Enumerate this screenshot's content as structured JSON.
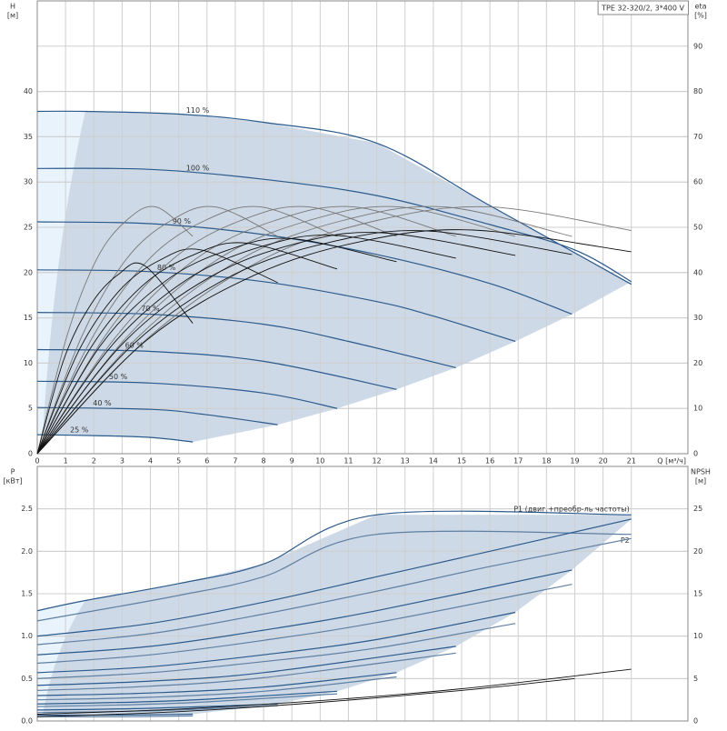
{
  "chart_data": [
    {
      "type": "line",
      "title": "TPE 32-320/2, 3*400 V",
      "y_label": "H",
      "y_unit": "[м]",
      "y2_label": "eta",
      "y2_unit": "[%]",
      "x_label": "Q [м³/ч]",
      "xlim": [
        0,
        23
      ],
      "xticks": [
        0,
        1,
        2,
        3,
        4,
        5,
        6,
        7,
        8,
        9,
        10,
        11,
        12,
        13,
        14,
        15,
        16,
        17,
        18,
        19,
        20,
        21
      ],
      "ylim": [
        0,
        50
      ],
      "yticks": [
        0,
        5,
        10,
        15,
        20,
        25,
        30,
        35,
        40
      ],
      "y2lim": [
        0,
        100
      ],
      "y2ticks": [
        0,
        10,
        20,
        30,
        40,
        50,
        60,
        70,
        80,
        90
      ],
      "grid": true,
      "series": [
        {
          "name": "110 %",
          "color": "#2b5a8c",
          "x": [
            0,
            1.7,
            5,
            8,
            12,
            16,
            21
          ],
          "values": [
            37.8,
            37.8,
            37.5,
            36.6,
            34.3,
            27.4,
            18.7
          ]
        },
        {
          "name": "100 %",
          "color": "#2b5a8c",
          "x": [
            0,
            4,
            8,
            12,
            16,
            19,
            21
          ],
          "values": [
            31.5,
            31.4,
            30.3,
            28.5,
            25.3,
            22.5,
            19.0
          ]
        },
        {
          "name": "90 %",
          "color": "#2b5a8c",
          "x": [
            0,
            4,
            8,
            12,
            16,
            18.9
          ],
          "values": [
            25.6,
            25.4,
            24.2,
            22,
            18.8,
            15.4
          ]
        },
        {
          "name": "80 %",
          "color": "#2b5a8c",
          "x": [
            0,
            4,
            8,
            12,
            14,
            16.9
          ],
          "values": [
            20.3,
            20.1,
            19,
            16.8,
            15.2,
            12.4
          ]
        },
        {
          "name": "70 %",
          "color": "#2b5a8c",
          "x": [
            0,
            4,
            8,
            11,
            14.8
          ],
          "values": [
            15.6,
            15.4,
            14.3,
            12.4,
            9.5
          ]
        },
        {
          "name": "60 %",
          "color": "#2b5a8c",
          "x": [
            0,
            4,
            8,
            12.7
          ],
          "values": [
            11.5,
            11.3,
            10.2,
            7.1
          ]
        },
        {
          "name": "50 %",
          "color": "#2b5a8c",
          "x": [
            0,
            4,
            8,
            10.6
          ],
          "values": [
            8.0,
            7.8,
            6.7,
            5.0
          ]
        },
        {
          "name": "40 %",
          "color": "#2b5a8c",
          "x": [
            0,
            4,
            6,
            8.5
          ],
          "values": [
            5.1,
            4.9,
            4.3,
            3.2
          ]
        },
        {
          "name": "25 %",
          "color": "#2b5a8c",
          "x": [
            0,
            2,
            4,
            5.5
          ],
          "values": [
            2.1,
            2.0,
            1.8,
            1.3
          ]
        },
        {
          "color": "#777777",
          "axis": "y2",
          "x": [
            0,
            1.05,
            2.1,
            3.15,
            4.2,
            5.5
          ],
          "values": [
            0,
            26,
            43,
            51.5,
            54.5,
            48
          ]
        },
        {
          "color": "#777777",
          "axis": "y2",
          "x": [
            0,
            1.58,
            3.15,
            4.73,
            6.3,
            8.5
          ],
          "values": [
            0,
            26,
            43,
            51.5,
            54.5,
            48
          ]
        },
        {
          "color": "#777777",
          "axis": "y2",
          "x": [
            0,
            1.98,
            3.95,
            5.93,
            7.9,
            10.6
          ],
          "values": [
            0,
            26,
            43,
            51.5,
            54.5,
            48
          ]
        },
        {
          "color": "#777777",
          "axis": "y2",
          "x": [
            0,
            2.4,
            4.8,
            7.2,
            9.6,
            12.7
          ],
          "values": [
            0,
            26,
            43,
            51.5,
            54.5,
            48
          ]
        },
        {
          "color": "#777777",
          "axis": "y2",
          "x": [
            0,
            2.8,
            5.6,
            8.4,
            11.2,
            14.8
          ],
          "values": [
            0,
            26,
            43,
            51.5,
            54.5,
            48
          ]
        },
        {
          "color": "#777777",
          "axis": "y2",
          "x": [
            0,
            3.2,
            6.4,
            9.6,
            12.8,
            16.9
          ],
          "values": [
            0,
            26,
            43,
            51.5,
            54.5,
            48
          ]
        },
        {
          "color": "#777777",
          "axis": "y2",
          "x": [
            0,
            3.6,
            7.2,
            10.8,
            14.4,
            18.9
          ],
          "values": [
            0,
            26,
            43,
            51.5,
            54.5,
            48
          ]
        },
        {
          "color": "#777777",
          "axis": "y2",
          "x": [
            0,
            4,
            8,
            12,
            16,
            21
          ],
          "values": [
            0,
            26,
            43,
            51.5,
            54.5,
            49.3
          ]
        },
        {
          "color": "#111111",
          "axis": "y2",
          "x": [
            0,
            0.95,
            1.9,
            2.85,
            3.8,
            5.5
          ],
          "values": [
            0,
            21,
            33,
            39.5,
            41.5,
            28.8
          ]
        },
        {
          "color": "#111111",
          "axis": "y2",
          "x": [
            0,
            1.45,
            2.9,
            4.35,
            5.8,
            8.5
          ],
          "values": [
            0,
            22.5,
            36,
            42.8,
            45,
            37.8
          ]
        },
        {
          "color": "#111111",
          "axis": "y2",
          "x": [
            0,
            1.85,
            3.7,
            5.55,
            7.4,
            10.6
          ],
          "values": [
            0,
            23,
            37,
            44,
            46.5,
            40.8
          ]
        },
        {
          "color": "#111111",
          "axis": "y2",
          "x": [
            0,
            2.25,
            4.5,
            6.75,
            9,
            12.7
          ],
          "values": [
            0,
            24,
            38,
            45,
            47.5,
            42.4
          ]
        },
        {
          "color": "#111111",
          "axis": "y2",
          "x": [
            0,
            2.65,
            5.3,
            7.95,
            10.6,
            14.8
          ],
          "values": [
            0,
            24,
            38.5,
            45.8,
            48.2,
            43.2
          ]
        },
        {
          "color": "#111111",
          "axis": "y2",
          "x": [
            0,
            3.05,
            6.1,
            9.15,
            12.2,
            16.9
          ],
          "values": [
            0,
            24.5,
            39,
            46.4,
            48.8,
            43.8
          ]
        },
        {
          "color": "#111111",
          "axis": "y2",
          "x": [
            0,
            3.45,
            6.9,
            10.35,
            13.8,
            18.9
          ],
          "values": [
            0,
            24.5,
            39.4,
            46.7,
            49.2,
            44
          ]
        },
        {
          "color": "#111111",
          "axis": "y2",
          "x": [
            0,
            3.85,
            7.7,
            11.55,
            15.4,
            21
          ],
          "values": [
            0,
            25,
            39.5,
            47,
            49.4,
            44.6
          ]
        }
      ]
    },
    {
      "type": "line",
      "y_label": "P",
      "y_unit": "[кВт]",
      "y2_label": "NPSH",
      "y2_unit": "[м]",
      "xlim": [
        0,
        23
      ],
      "xticks": [
        0,
        1,
        2,
        3,
        4,
        5,
        6,
        7,
        8,
        9,
        10,
        11,
        12,
        13,
        14,
        15,
        16,
        17,
        18,
        19,
        20,
        21
      ],
      "ylim": [
        0,
        3
      ],
      "yticks": [
        {
          "value": 0,
          "label": "0.0"
        },
        0.5,
        {
          "value": 1,
          "label": "1.0"
        },
        1.5,
        {
          "value": 2,
          "label": "2.0"
        },
        2.5
      ],
      "y2lim": [
        0,
        30
      ],
      "y2ticks": [
        0,
        5,
        10,
        15,
        20,
        25
      ],
      "grid": true,
      "series": [
        {
          "name": "P1 (двиг.+преобр-ль частоты)",
          "color": "#2b5a8c",
          "x": [
            0,
            1.7,
            5,
            8,
            12,
            21
          ],
          "values": [
            1.3,
            1.42,
            1.62,
            1.85,
            2.43,
            2.43
          ]
        },
        {
          "name": "P2",
          "color": "#5f7fa3",
          "x": [
            0,
            1.7,
            5,
            8,
            12,
            21
          ],
          "values": [
            1.18,
            1.28,
            1.48,
            1.7,
            2.2,
            2.2
          ]
        },
        {
          "color": "#2b5a8c",
          "x": [
            0,
            4,
            8,
            12,
            16,
            21
          ],
          "values": [
            1.0,
            1.15,
            1.4,
            1.7,
            2.0,
            2.38
          ]
        },
        {
          "color": "#5f7fa3",
          "x": [
            0,
            4,
            8,
            12,
            16,
            21
          ],
          "values": [
            0.9,
            1.03,
            1.26,
            1.53,
            1.82,
            2.15
          ]
        },
        {
          "color": "#2b5a8c",
          "x": [
            0,
            4,
            8,
            12,
            18.9
          ],
          "values": [
            0.78,
            0.88,
            1.07,
            1.3,
            1.78
          ]
        },
        {
          "color": "#5f7fa3",
          "x": [
            0,
            4,
            8,
            12,
            18.9
          ],
          "values": [
            0.68,
            0.78,
            0.95,
            1.16,
            1.61
          ]
        },
        {
          "color": "#2b5a8c",
          "x": [
            0,
            4,
            8,
            12,
            16.9
          ],
          "values": [
            0.57,
            0.64,
            0.78,
            0.96,
            1.28
          ]
        },
        {
          "color": "#5f7fa3",
          "x": [
            0,
            4,
            8,
            12,
            16.9
          ],
          "values": [
            0.5,
            0.57,
            0.7,
            0.86,
            1.15
          ]
        },
        {
          "color": "#2b5a8c",
          "x": [
            0,
            4,
            8,
            14.8
          ],
          "values": [
            0.42,
            0.47,
            0.57,
            0.88
          ]
        },
        {
          "color": "#5f7fa3",
          "x": [
            0,
            4,
            8,
            14.8
          ],
          "values": [
            0.36,
            0.41,
            0.51,
            0.8
          ]
        },
        {
          "color": "#2b5a8c",
          "x": [
            0,
            4,
            8,
            12.7
          ],
          "values": [
            0.3,
            0.33,
            0.4,
            0.57
          ]
        },
        {
          "color": "#5f7fa3",
          "x": [
            0,
            4,
            8,
            12.7
          ],
          "values": [
            0.25,
            0.28,
            0.35,
            0.52
          ]
        },
        {
          "color": "#2b5a8c",
          "x": [
            0,
            5,
            10.6
          ],
          "values": [
            0.2,
            0.24,
            0.35
          ]
        },
        {
          "color": "#5f7fa3",
          "x": [
            0,
            5,
            10.6
          ],
          "values": [
            0.17,
            0.21,
            0.32
          ]
        },
        {
          "color": "#2b5a8c",
          "x": [
            0,
            4,
            8.5
          ],
          "values": [
            0.13,
            0.15,
            0.2
          ]
        },
        {
          "color": "#5f7fa3",
          "x": [
            0,
            4,
            8.5
          ],
          "values": [
            0.1,
            0.12,
            0.18
          ]
        },
        {
          "color": "#2b5a8c",
          "x": [
            0,
            3,
            5.5
          ],
          "values": [
            0.07,
            0.07,
            0.08
          ]
        },
        {
          "color": "#5f7fa3",
          "x": [
            0,
            3,
            5.5
          ],
          "values": [
            0.05,
            0.05,
            0.06
          ]
        },
        {
          "color": "#111111",
          "axis": "y2",
          "x": [
            0,
            5,
            10,
            15,
            21
          ],
          "values": [
            0.8,
            1.4,
            2.4,
            3.8,
            6.1
          ]
        },
        {
          "color": "#111111",
          "axis": "y2",
          "x": [
            0,
            5,
            10,
            15,
            19
          ],
          "values": [
            0.5,
            1.1,
            2.2,
            3.6,
            5.0
          ]
        }
      ]
    }
  ]
}
